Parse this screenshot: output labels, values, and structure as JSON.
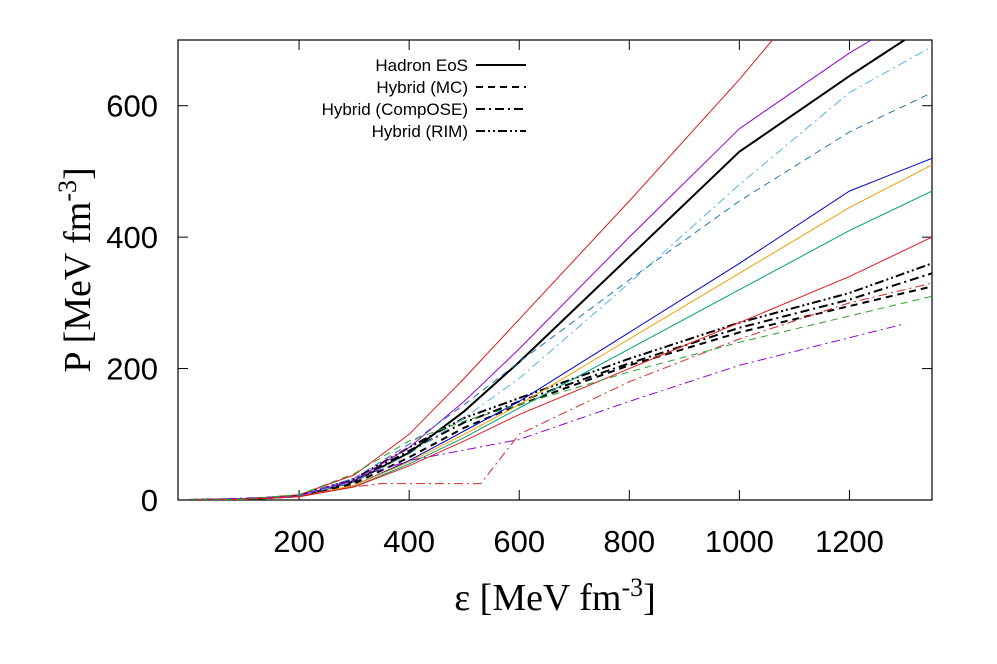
{
  "chart_data": {
    "type": "line",
    "xlabel": {
      "text": "ε [MeV fm",
      "sup": "-3",
      "end": "]"
    },
    "ylabel": {
      "text": "P [MeV fm",
      "sup": "-3",
      "end": "]"
    },
    "xlim": [
      -20,
      1350
    ],
    "ylim": [
      0,
      700
    ],
    "xticks": [
      200,
      400,
      600,
      800,
      1000,
      1200
    ],
    "yticks": [
      0,
      200,
      400,
      600
    ],
    "legend": [
      {
        "label": "Hadron EoS",
        "dash": "solid"
      },
      {
        "label": "Hybrid (MC)",
        "dash": "dashed"
      },
      {
        "label": "Hybrid (CompOSE)",
        "dash": "dashdot"
      },
      {
        "label": "Hybrid (RIM)",
        "dash": "dashdotdot"
      }
    ],
    "series": [
      {
        "color": "#000000",
        "dash": "solid",
        "width": 2,
        "x": [
          0,
          100,
          200,
          300,
          400,
          500,
          600,
          800,
          1000,
          1200,
          1300
        ],
        "values": [
          0,
          1,
          6,
          28,
          72,
          135,
          210,
          370,
          530,
          645,
          700
        ]
      },
      {
        "color": "#000000",
        "dash": "dashed",
        "width": 2,
        "x": [
          0,
          100,
          200,
          300,
          400,
          500,
          600,
          800,
          1000,
          1200,
          1350
        ],
        "values": [
          0,
          1,
          6,
          25,
          65,
          110,
          145,
          205,
          255,
          295,
          325
        ]
      },
      {
        "color": "#000000",
        "dash": "dashdot",
        "width": 2,
        "x": [
          0,
          100,
          200,
          300,
          400,
          500,
          600,
          800,
          1000,
          1200,
          1350
        ],
        "values": [
          0,
          1,
          6,
          30,
          75,
          118,
          150,
          208,
          262,
          305,
          345
        ]
      },
      {
        "color": "#000000",
        "dash": "dashdotdot",
        "width": 2,
        "x": [
          0,
          100,
          200,
          300,
          400,
          500,
          600,
          800,
          1000,
          1200,
          1350
        ],
        "values": [
          0,
          1,
          7,
          32,
          80,
          125,
          155,
          215,
          270,
          315,
          360
        ]
      },
      {
        "color": "#e31a1c",
        "dash": "solid",
        "width": 1,
        "x": [
          0,
          100,
          200,
          300,
          400,
          500,
          600,
          800,
          1000,
          1060
        ],
        "values": [
          0,
          1,
          8,
          38,
          100,
          185,
          275,
          455,
          640,
          700
        ]
      },
      {
        "color": "#9400d3",
        "dash": "solid",
        "width": 1,
        "x": [
          0,
          100,
          200,
          300,
          400,
          500,
          600,
          800,
          1000,
          1200,
          1240
        ],
        "values": [
          0,
          1,
          6,
          30,
          80,
          150,
          230,
          400,
          565,
          680,
          700
        ]
      },
      {
        "color": "#0000cd",
        "dash": "solid",
        "width": 1,
        "x": [
          0,
          100,
          200,
          300,
          400,
          500,
          600,
          800,
          1000,
          1200,
          1350
        ],
        "values": [
          0,
          1,
          5,
          22,
          60,
          105,
          150,
          255,
          360,
          470,
          520
        ]
      },
      {
        "color": "#009e73",
        "dash": "solid",
        "width": 1,
        "x": [
          0,
          100,
          200,
          300,
          400,
          500,
          600,
          800,
          1000,
          1200,
          1350
        ],
        "values": [
          0,
          1,
          5,
          20,
          55,
          95,
          140,
          230,
          320,
          410,
          470
        ]
      },
      {
        "color": "#f0a000",
        "dash": "solid",
        "width": 1,
        "x": [
          0,
          100,
          200,
          300,
          400,
          500,
          600,
          800,
          1000,
          1200,
          1350
        ],
        "values": [
          0,
          1,
          5,
          22,
          58,
          100,
          145,
          245,
          345,
          445,
          510
        ]
      },
      {
        "color": "#56b4e9",
        "dash": "dashdot",
        "width": 1,
        "x": [
          0,
          100,
          200,
          300,
          400,
          500,
          600,
          800,
          1000,
          1200,
          1350
        ],
        "values": [
          0,
          1,
          6,
          28,
          70,
          125,
          185,
          330,
          480,
          620,
          690
        ]
      },
      {
        "color": "#d62728",
        "dash": "dashdot",
        "width": 1,
        "x": [
          0,
          100,
          200,
          300,
          350,
          530,
          600,
          700,
          800,
          1000,
          1200,
          1350
        ],
        "values": [
          0,
          1,
          6,
          20,
          25,
          25,
          100,
          140,
          180,
          245,
          300,
          330
        ]
      },
      {
        "color": "#9400d3",
        "dash": "dashdot",
        "width": 1,
        "x": [
          0,
          200,
          400,
          600,
          800,
          1000,
          1300
        ],
        "values": [
          0,
          6,
          60,
          92,
          150,
          205,
          268
        ]
      },
      {
        "color": "#1f77b4",
        "dash": "dashed",
        "width": 1,
        "x": [
          0,
          100,
          200,
          300,
          400,
          500,
          600,
          800,
          1000,
          1200,
          1350
        ],
        "values": [
          0,
          1,
          7,
          33,
          85,
          145,
          210,
          335,
          455,
          560,
          620
        ]
      },
      {
        "color": "#e31a1c",
        "dash": "solid",
        "width": 1,
        "x": [
          0,
          100,
          200,
          300,
          400,
          500,
          600,
          800,
          1000,
          1200,
          1350
        ],
        "values": [
          0,
          1,
          5,
          20,
          52,
          90,
          130,
          200,
          270,
          340,
          400
        ]
      },
      {
        "color": "#2ca02c",
        "dash": "dashed",
        "width": 1,
        "x": [
          0,
          100,
          200,
          300,
          400,
          500,
          600,
          800,
          1000,
          1200,
          1350
        ],
        "values": [
          0,
          1,
          8,
          40,
          90,
          120,
          145,
          195,
          240,
          280,
          310
        ]
      }
    ]
  }
}
